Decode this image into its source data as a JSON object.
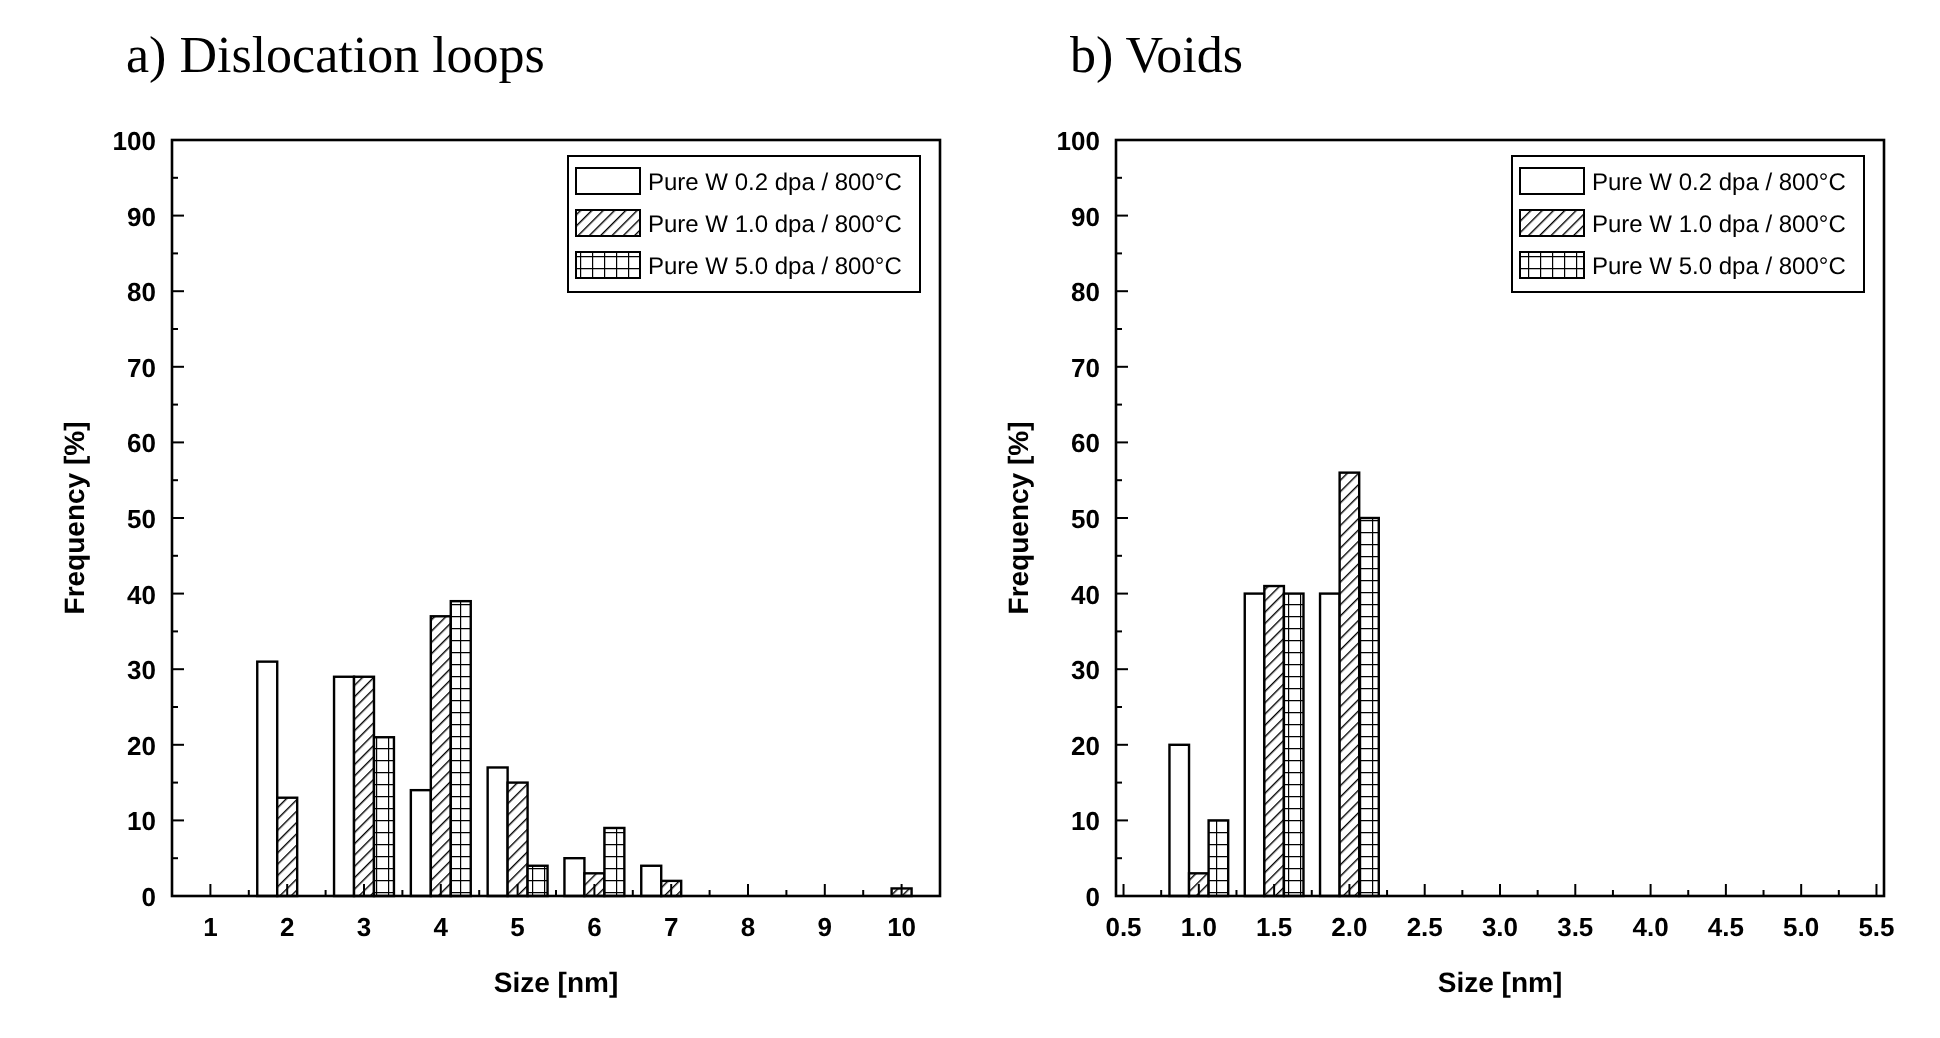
{
  "chart_data": [
    {
      "type": "bar",
      "title": "a)  Dislocation loops",
      "xlabel": "Size [nm]",
      "ylabel": "Frequency [%]",
      "x": [
        1,
        2,
        3,
        4,
        5,
        6,
        7,
        8,
        9,
        10
      ],
      "series": [
        {
          "name": "Pure W 0.2 dpa / 800°C",
          "color": "#ffffff",
          "values": [
            0,
            31,
            29,
            14,
            17,
            5,
            4,
            0,
            0,
            0
          ]
        },
        {
          "name": "Pure W 1.0 dpa / 800°C",
          "color": "#000000",
          "values": [
            0,
            13,
            29,
            37,
            15,
            3,
            2,
            0,
            0,
            1
          ]
        },
        {
          "name": "Pure W 5.0 dpa / 800°C",
          "color": "#000000",
          "values": [
            0,
            0,
            21,
            39,
            4,
            9,
            0,
            0,
            0,
            0
          ]
        }
      ],
      "xlim": [
        0.5,
        10.5
      ],
      "xticks": [
        1,
        2,
        3,
        4,
        5,
        6,
        7,
        8,
        9,
        10
      ],
      "ylim": [
        0,
        100
      ],
      "yticks": [
        0,
        10,
        20,
        30,
        40,
        50,
        60,
        70,
        80,
        90,
        100
      ],
      "legend": "top right"
    },
    {
      "type": "bar",
      "title": "b)  Voids",
      "xlabel": "Size [nm]",
      "ylabel": "Frequency [%]",
      "x": [
        1.0,
        1.5,
        2.0
      ],
      "series": [
        {
          "name": "Pure W 0.2 dpa / 800°C",
          "color": "#ffffff",
          "values": [
            20,
            40,
            40
          ]
        },
        {
          "name": "Pure W 1.0 dpa / 800°C",
          "color": "#000000",
          "values": [
            3,
            41,
            56
          ]
        },
        {
          "name": "Pure W 5.0 dpa / 800°C",
          "color": "#000000",
          "values": [
            10,
            40,
            50
          ]
        }
      ],
      "xlim": [
        0.45,
        5.55
      ],
      "xticks": [
        {
          "value": 0.5,
          "label": "0.5"
        },
        {
          "value": 1,
          "label": "1.0"
        },
        {
          "value": 1.5,
          "label": "1.5"
        },
        {
          "value": 2,
          "label": "2.0"
        },
        {
          "value": 2.5,
          "label": "2.5"
        },
        {
          "value": 3,
          "label": "3.0"
        },
        {
          "value": 3.5,
          "label": "3.5"
        },
        {
          "value": 4,
          "label": "4.0"
        },
        {
          "value": 4.5,
          "label": "4.5"
        },
        {
          "value": 5,
          "label": "5.0"
        },
        {
          "value": 5.5,
          "label": "5.5"
        }
      ],
      "ylim": [
        0,
        100
      ],
      "yticks": [
        0,
        10,
        20,
        30,
        40,
        50,
        60,
        70,
        80,
        90,
        100
      ],
      "legend": "top right"
    }
  ]
}
